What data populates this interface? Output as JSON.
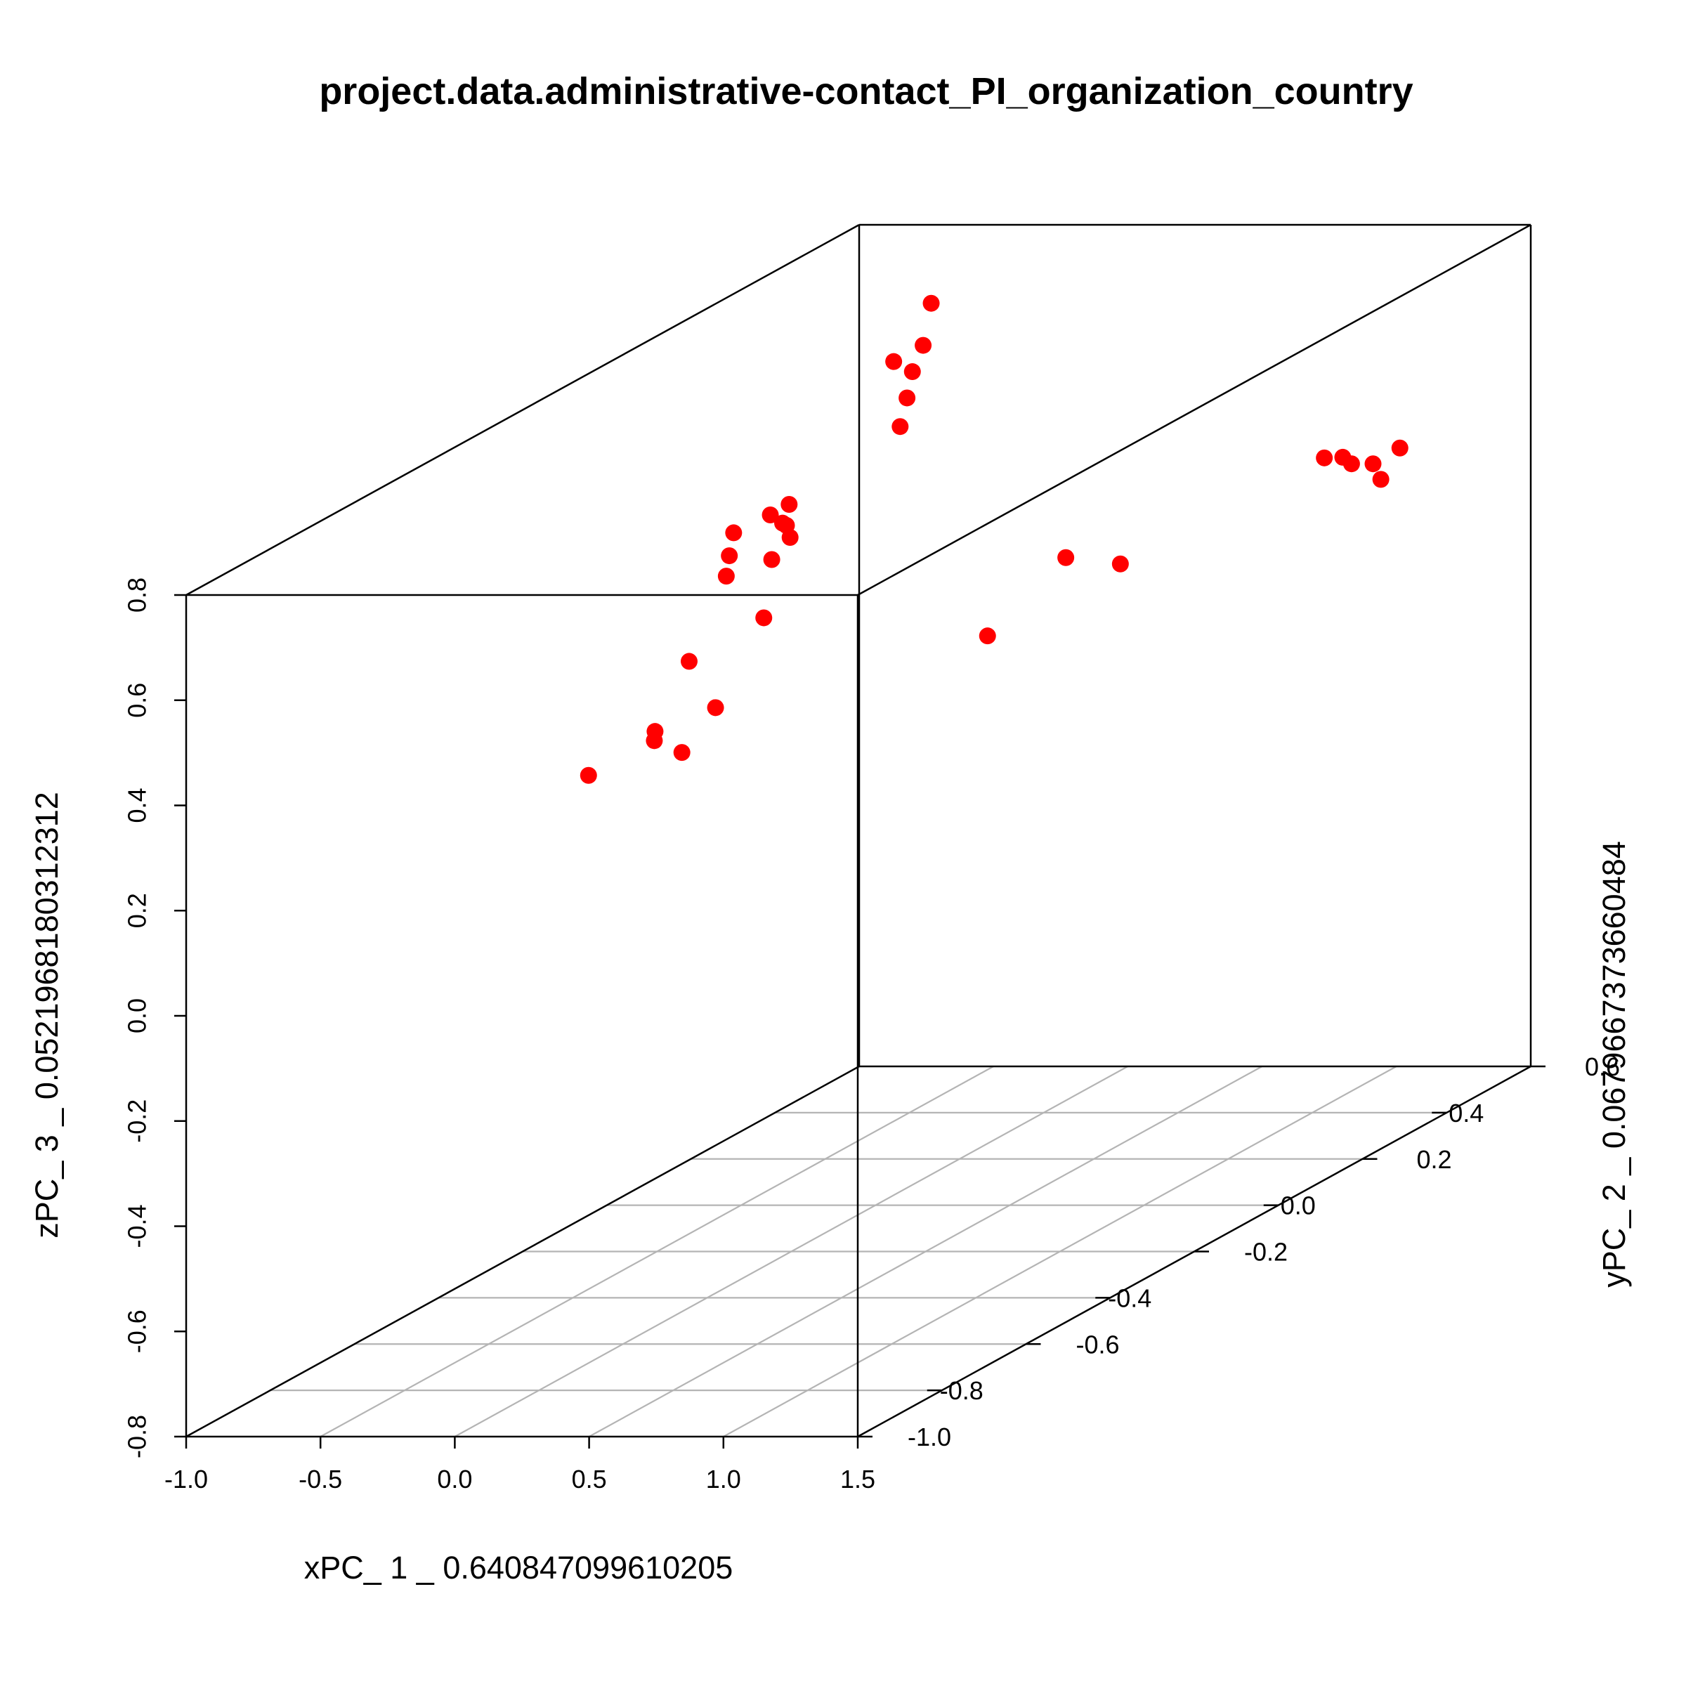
{
  "chart_data": {
    "type": "scatter3d",
    "title": "project.data.administrative-contact_PI_organization_country",
    "xlabel": "xPC_ 1 _ 0.640847099610205",
    "ylabel": "yPC_ 2 _ 0.0679667373660484",
    "zlabel": "zPC_ 3 _ 0.0521968180312312",
    "xlim": [
      -1.0,
      1.5
    ],
    "ylim": [
      -1.0,
      0.6
    ],
    "zlim": [
      -0.8,
      0.8
    ],
    "x_ticks": [
      "-1.0",
      "-0.5",
      "0.0",
      "0.5",
      "1.0",
      "1.5"
    ],
    "y_ticks": [
      "-1.0",
      "-0.8",
      "-0.6",
      "-0.4",
      "-0.2",
      "0.0",
      "0.2",
      "0.4",
      "0.6"
    ],
    "z_ticks": [
      "-0.8",
      "-0.6",
      "-0.4",
      "-0.2",
      "0.0",
      "0.2",
      "0.4",
      "0.6",
      "0.8"
    ],
    "grid": "bottom-plane",
    "point_color": "#ff0000",
    "points": [
      {
        "x": -0.45,
        "y": 0.42,
        "z": 0.73
      },
      {
        "x": -0.48,
        "y": 0.42,
        "z": 0.65
      },
      {
        "x": -0.48,
        "y": 0.35,
        "z": 0.65
      },
      {
        "x": -0.52,
        "y": 0.42,
        "z": 0.6
      },
      {
        "x": -0.54,
        "y": 0.42,
        "z": 0.55
      },
      {
        "x": -0.55,
        "y": 0.41,
        "z": 0.5
      },
      {
        "x": -0.65,
        "y": 0.21,
        "z": 0.44
      },
      {
        "x": -0.72,
        "y": 0.21,
        "z": 0.42
      },
      {
        "x": -0.69,
        "y": 0.22,
        "z": 0.4
      },
      {
        "x": -0.7,
        "y": 0.11,
        "z": 0.43
      },
      {
        "x": -0.66,
        "y": 0.21,
        "z": 0.4
      },
      {
        "x": -0.81,
        "y": 0.17,
        "z": 0.36
      },
      {
        "x": -0.79,
        "y": 0.15,
        "z": 0.33
      },
      {
        "x": -0.85,
        "y": 0.34,
        "z": 0.32
      },
      {
        "x": -0.84,
        "y": 0.29,
        "z": 0.3
      },
      {
        "x": -0.76,
        "y": 0.22,
        "z": 0.22
      },
      {
        "x": -0.85,
        "y": 0.1,
        "z": 0.19
      },
      {
        "x": -0.83,
        "y": 0.15,
        "z": 0.08
      },
      {
        "x": -0.87,
        "y": 0.03,
        "z": 0.07
      },
      {
        "x": -0.88,
        "y": -0.12,
        "z": 0.07
      },
      {
        "x": -0.83,
        "y": 0.07,
        "z": 0.03
      },
      {
        "x": -0.93,
        "y": 0.07,
        "z": 0.07
      },
      {
        "x": 0.48,
        "y": -0.04,
        "z": 0.3
      },
      {
        "x": 0.63,
        "y": 0.18,
        "z": 0.34
      },
      {
        "x": 0.74,
        "y": -0.02,
        "z": 0.44
      },
      {
        "x": 1.17,
        "y": 0.32,
        "z": 0.48
      },
      {
        "x": 1.24,
        "y": 0.34,
        "z": 0.46
      },
      {
        "x": 1.27,
        "y": 0.3,
        "z": 0.49
      },
      {
        "x": 1.32,
        "y": 0.34,
        "z": 0.46
      },
      {
        "x": 1.42,
        "y": 0.34,
        "z": 0.49
      },
      {
        "x": 1.49,
        "y": 0.25,
        "z": 0.47
      }
    ]
  }
}
